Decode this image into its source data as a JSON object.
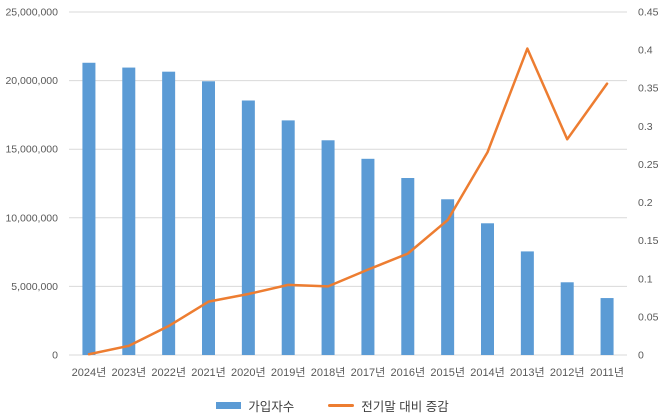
{
  "chart_data": {
    "type": "combo-bar-line",
    "title": "",
    "categories": [
      "2024년",
      "2023년",
      "2022년",
      "2021년",
      "2020년",
      "2019년",
      "2018년",
      "2017년",
      "2016년",
      "2015년",
      "2014년",
      "2013년",
      "2012년",
      "2011년"
    ],
    "series": [
      {
        "name": "가입자수",
        "type": "bar",
        "axis": "left",
        "values": [
          21300000,
          20950000,
          20650000,
          19950000,
          18550000,
          17100000,
          15650000,
          14300000,
          12900000,
          11350000,
          9600000,
          7550000,
          5300000,
          4150000
        ]
      },
      {
        "name": "전기말 대비 증감",
        "type": "line",
        "axis": "right",
        "values": [
          0.001,
          0.012,
          0.038,
          0.07,
          0.08,
          0.092,
          0.09,
          0.112,
          0.133,
          0.177,
          0.266,
          0.402,
          0.283,
          0.356
        ]
      }
    ],
    "left_axis": {
      "min": 0,
      "max": 25000000,
      "step": 5000000,
      "tick_labels": [
        "0",
        "5,000,000",
        "10,000,000",
        "15,000,000",
        "20,000,000",
        "25,000,000"
      ]
    },
    "right_axis": {
      "min": 0,
      "max": 0.45,
      "step": 0.05,
      "tick_labels": [
        "0",
        "0.05",
        "0.1",
        "0.15",
        "0.2",
        "0.25",
        "0.3",
        "0.35",
        "0.4",
        "0.45"
      ]
    },
    "grid": true,
    "legend_position": "bottom",
    "colors": {
      "bar": "#5B9BD5",
      "line": "#ED7D31",
      "gridline": "#D9D9D9",
      "axis_text": "#595959",
      "legend_text": "#404040",
      "background": "#FFFFFF"
    }
  }
}
